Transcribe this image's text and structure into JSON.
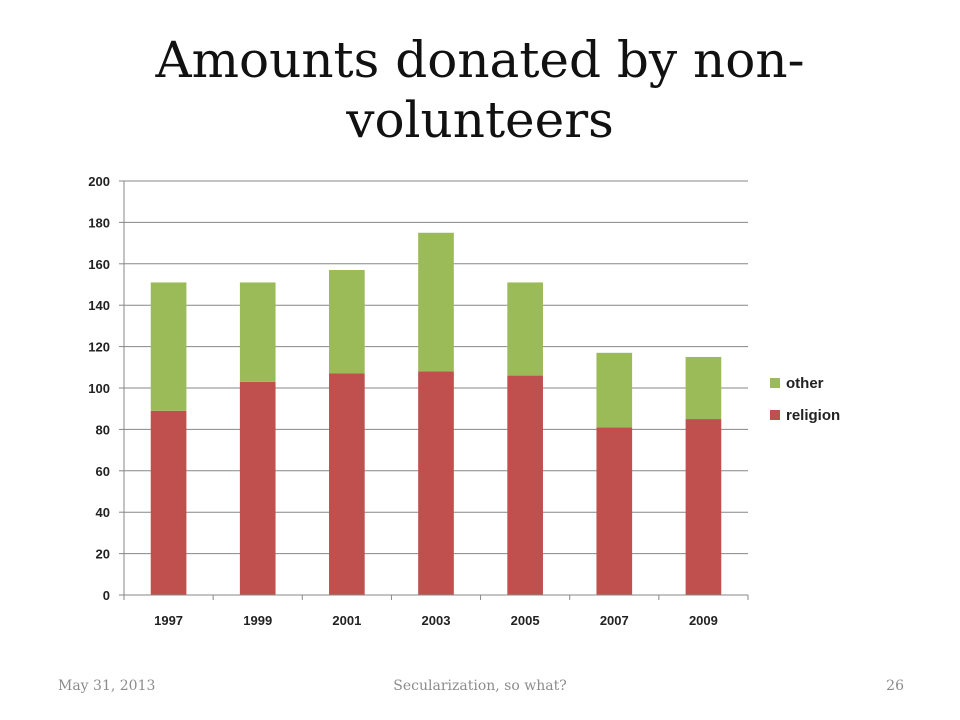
{
  "slide": {
    "title": "Amounts donated by non-volunteers",
    "title_line1": "Amounts donated by non-",
    "title_line2": "volunteers"
  },
  "footer": {
    "date": "May 31, 2013",
    "subject": "Secularization, so what?",
    "page_number": "26"
  },
  "chart_data": {
    "type": "bar",
    "stacked": true,
    "categories": [
      "1997",
      "1999",
      "2001",
      "2003",
      "2005",
      "2007",
      "2009"
    ],
    "series": [
      {
        "name": "religion",
        "color": "#c0504d",
        "values": [
          89,
          103,
          107,
          108,
          106,
          81,
          85
        ]
      },
      {
        "name": "other",
        "color": "#9bbb59",
        "values": [
          62,
          48,
          50,
          67,
          45,
          36,
          30
        ]
      }
    ],
    "legend_order": [
      "other",
      "religion"
    ],
    "title": "",
    "xlabel": "",
    "ylabel": "",
    "ylim": [
      0,
      200
    ],
    "yticks": [
      0,
      20,
      40,
      60,
      80,
      100,
      120,
      140,
      160,
      180,
      200
    ],
    "grid": true,
    "legend": "right"
  }
}
